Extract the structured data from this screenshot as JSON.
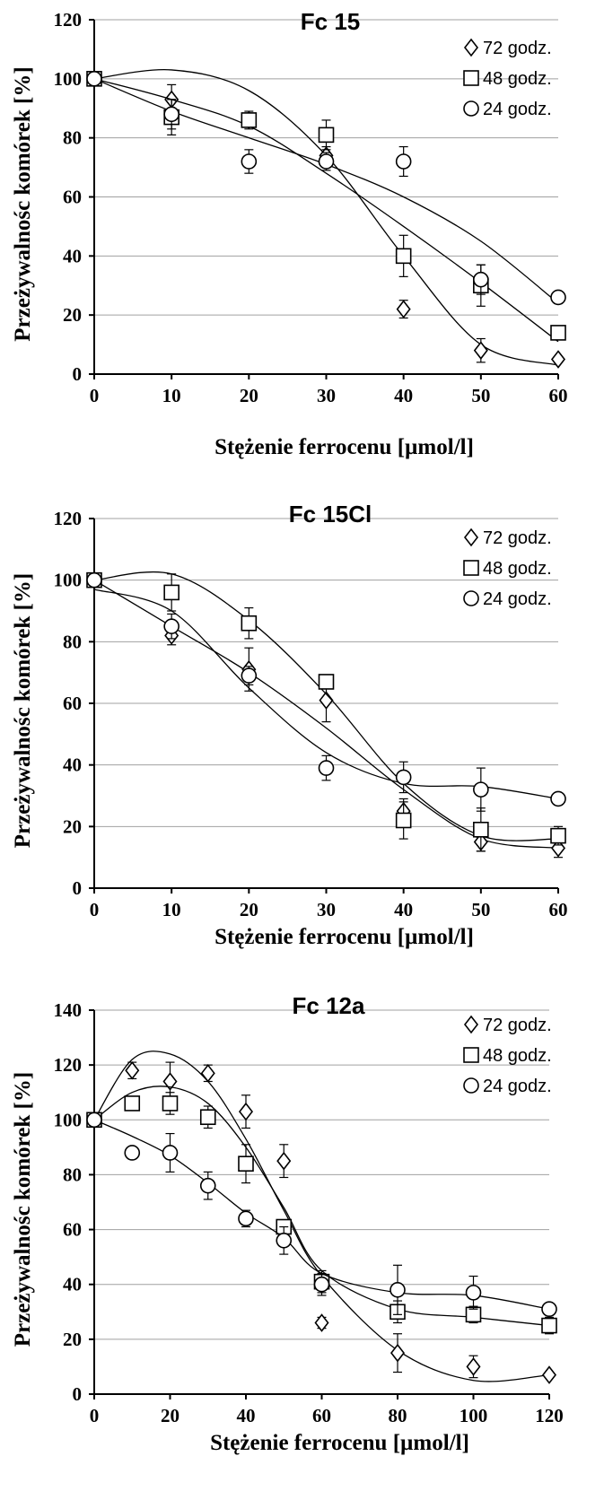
{
  "chart_data": [
    {
      "type": "scatter",
      "title": "Fc 15",
      "xlabel": "Stężenie ferrocenu [µmol/l]",
      "ylabel": "Przeżywalnośc komórek [%]",
      "xlim": [
        0,
        60
      ],
      "ylim": [
        0,
        120
      ],
      "xticks": [
        "0",
        "10",
        "20",
        "30",
        "40",
        "50",
        "60"
      ],
      "yticks": [
        "0",
        "20",
        "40",
        "60",
        "80",
        "100",
        "120"
      ],
      "grid": "horizontal",
      "legend_position": "top-right",
      "series": [
        {
          "name": "72 godz.",
          "marker": "diamond",
          "x": [
            0,
            10,
            20,
            30,
            40,
            50,
            60
          ],
          "y": [
            100,
            93,
            86,
            74,
            22,
            8,
            5
          ],
          "err": [
            0,
            5,
            2,
            3,
            3,
            4,
            0
          ],
          "fit": [
            100,
            103,
            96,
            74,
            40,
            10,
            3
          ]
        },
        {
          "name": "48 godz.",
          "marker": "square",
          "x": [
            0,
            10,
            20,
            30,
            40,
            50,
            60
          ],
          "y": [
            100,
            87,
            86,
            81,
            40,
            30,
            14
          ],
          "err": [
            0,
            6,
            3,
            5,
            7,
            7,
            0
          ],
          "fit": [
            100,
            93,
            84,
            68,
            50,
            31,
            11
          ]
        },
        {
          "name": "24 godz.",
          "marker": "circle",
          "x": [
            0,
            10,
            20,
            30,
            40,
            50,
            60
          ],
          "y": [
            100,
            88,
            72,
            72,
            72,
            32,
            26
          ],
          "err": [
            0,
            5,
            4,
            3,
            5,
            5,
            0
          ],
          "fit": [
            100,
            89,
            80,
            71,
            60,
            45,
            24
          ]
        }
      ]
    },
    {
      "type": "scatter",
      "title": "Fc 15Cl",
      "xlabel": "Stężenie ferrocenu [µmol/l]",
      "ylabel": "Przeżywalnośc komórek [%]",
      "xlim": [
        0,
        60
      ],
      "ylim": [
        0,
        120
      ],
      "xticks": [
        "0",
        "10",
        "20",
        "30",
        "40",
        "50",
        "60"
      ],
      "yticks": [
        "0",
        "20",
        "40",
        "60",
        "80",
        "100",
        "120"
      ],
      "grid": "horizontal",
      "legend_position": "top-right",
      "series": [
        {
          "name": "72 godz.",
          "marker": "diamond",
          "x": [
            0,
            10,
            20,
            30,
            40,
            50,
            60
          ],
          "y": [
            100,
            82,
            71,
            61,
            25,
            15,
            13
          ],
          "err": [
            0,
            3,
            7,
            7,
            4,
            3,
            3
          ],
          "fit": [
            100,
            85,
            70,
            52,
            32,
            16,
            13
          ]
        },
        {
          "name": "48 godz.",
          "marker": "square",
          "x": [
            0,
            10,
            20,
            30,
            40,
            50,
            60
          ],
          "y": [
            100,
            96,
            86,
            67,
            22,
            19,
            17
          ],
          "err": [
            0,
            6,
            5,
            2,
            6,
            7,
            3
          ],
          "fit": [
            100,
            102,
            87,
            63,
            34,
            17,
            16
          ]
        },
        {
          "name": "24 godz.",
          "marker": "circle",
          "x": [
            0,
            10,
            20,
            30,
            40,
            50,
            60
          ],
          "y": [
            100,
            85,
            69,
            39,
            36,
            32,
            29
          ],
          "err": [
            0,
            4,
            3,
            4,
            5,
            7,
            0
          ],
          "fit": [
            97,
            90,
            65,
            44,
            34,
            33,
            29
          ]
        }
      ]
    },
    {
      "type": "scatter",
      "title": "Fc 12a",
      "xlabel": "Stężenie ferrocenu [µmol/l]",
      "ylabel": "Przeżywalnośc komórek [%]",
      "xlim": [
        0,
        120
      ],
      "ylim": [
        0,
        140
      ],
      "xticks": [
        "0",
        "20",
        "40",
        "60",
        "80",
        "100",
        "120"
      ],
      "yticks": [
        "0",
        "20",
        "40",
        "60",
        "80",
        "100",
        "120",
        "140"
      ],
      "grid": "horizontal",
      "legend_position": "top-right",
      "series": [
        {
          "name": "72 godz.",
          "marker": "diamond",
          "x": [
            0,
            10,
            20,
            30,
            40,
            50,
            60,
            80,
            100,
            120
          ],
          "y": [
            100,
            118,
            114,
            117,
            103,
            85,
            26,
            15,
            10,
            7
          ],
          "err": [
            0,
            3,
            7,
            3,
            6,
            6,
            2,
            7,
            4,
            0
          ],
          "fit": [
            100,
            122,
            124,
            114,
            93,
            67,
            43,
            16,
            5,
            7
          ]
        },
        {
          "name": "48 godz.",
          "marker": "square",
          "x": [
            0,
            10,
            20,
            30,
            40,
            50,
            60,
            80,
            100,
            120
          ],
          "y": [
            100,
            106,
            106,
            101,
            84,
            61,
            41,
            30,
            29,
            25
          ],
          "err": [
            0,
            0,
            4,
            4,
            7,
            2,
            4,
            4,
            3,
            3
          ],
          "fit": [
            100,
            110,
            112,
            106,
            90,
            68,
            45,
            31,
            28,
            25
          ]
        },
        {
          "name": "24 godz.",
          "marker": "circle",
          "x": [
            0,
            10,
            20,
            30,
            40,
            50,
            60,
            80,
            100,
            120
          ],
          "y": [
            100,
            88,
            88,
            76,
            64,
            56,
            40,
            38,
            37,
            31
          ],
          "err": [
            0,
            0,
            7,
            5,
            3,
            5,
            4,
            9,
            6,
            0
          ],
          "fit": [
            100,
            94,
            87,
            77,
            66,
            57,
            44,
            37,
            36,
            31
          ]
        }
      ]
    }
  ]
}
